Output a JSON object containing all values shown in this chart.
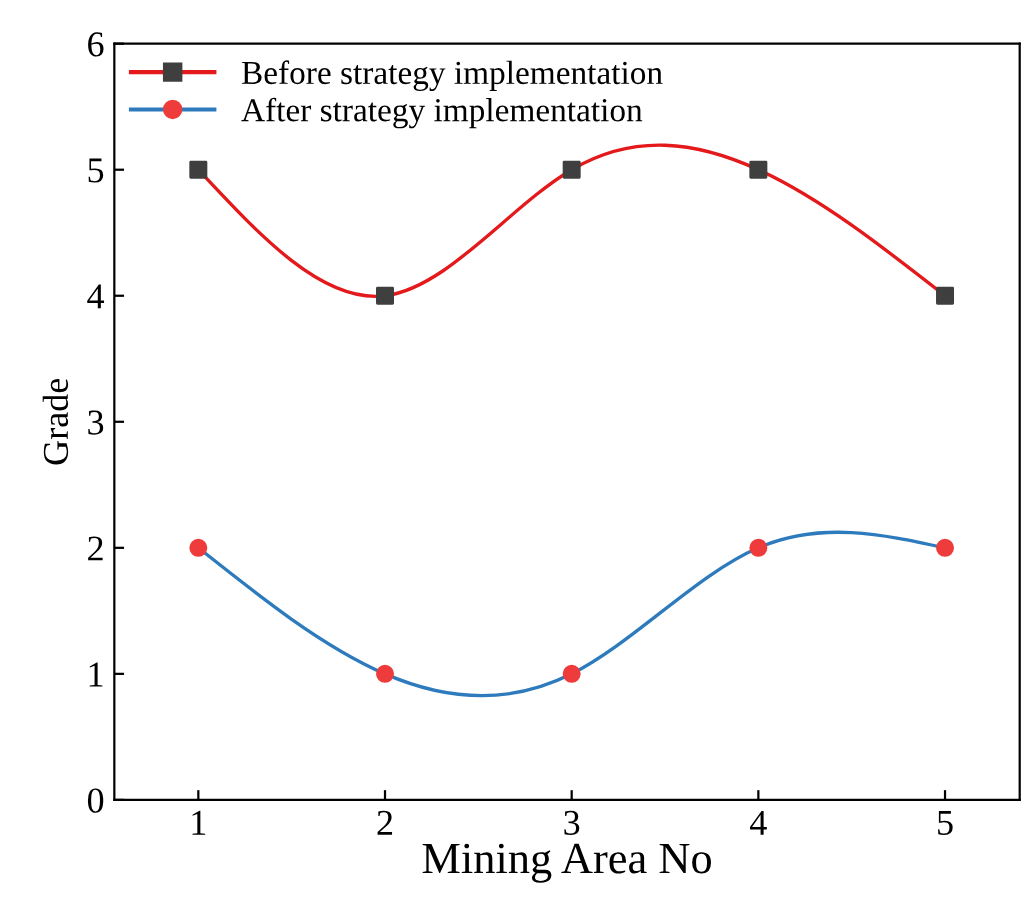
{
  "chart_data": {
    "type": "line",
    "xlabel": "Mining Area No",
    "ylabel": "Grade",
    "x": [
      1,
      2,
      3,
      4,
      5
    ],
    "xlim": [
      0.55,
      5.4
    ],
    "xticks": [
      1,
      2,
      3,
      4,
      5
    ],
    "ylim": [
      0,
      6
    ],
    "yticks": [
      0,
      1,
      2,
      3,
      4,
      5,
      6
    ],
    "grid": false,
    "legend": "top left",
    "line_style": "solid",
    "series": [
      {
        "name": "Before strategy implementation",
        "color": "#e3191b",
        "marker": "square",
        "colors": [
          "#3f3f3f",
          "#3f3f3f",
          "#3f3f3f",
          "#3f3f3f",
          "#3f3f3f"
        ],
        "values": [
          5,
          4,
          5,
          5,
          4
        ]
      },
      {
        "name": "After strategy implementation",
        "color": "#2d7bbd",
        "marker": "circle",
        "colors": [
          "#ee3b3b",
          "#ee3b3b",
          "#ee3b3b",
          "#ee3b3b",
          "#ee3b3b"
        ],
        "values": [
          2,
          1,
          1,
          2,
          2
        ]
      }
    ]
  }
}
